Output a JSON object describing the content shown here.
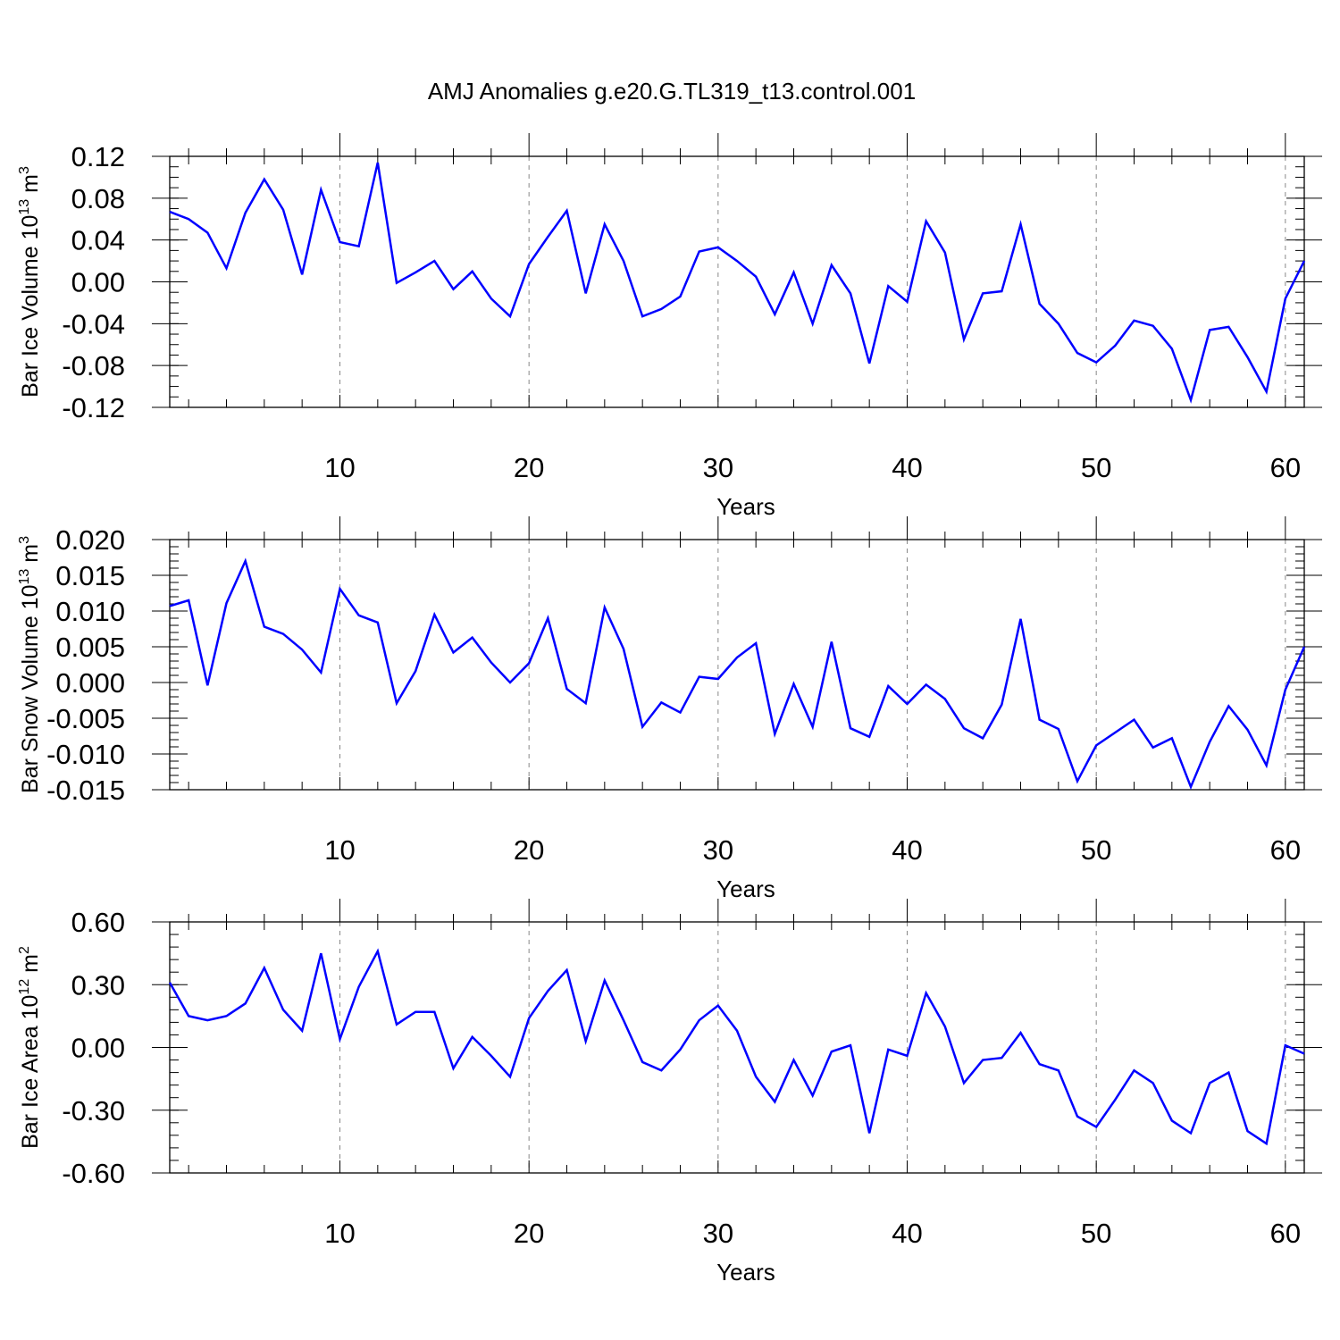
{
  "title": "AMJ Anomalies g.e20.G.TL319_t13.control.001",
  "chart_data": [
    {
      "type": "line",
      "ylabel": "Bar Ice Volume 10",
      "ylabel_unit_exp": "13",
      "ylabel_unit": "m",
      "ylabel_unit_pow": "3",
      "xlabel": "Years",
      "xlim": [
        1,
        61
      ],
      "ylim": [
        -0.12,
        0.12
      ],
      "x_ticks": [
        10,
        20,
        30,
        40,
        50,
        60
      ],
      "x_tick_labels": [
        "10",
        "20",
        "30",
        "40",
        "50",
        "60"
      ],
      "y_ticks": [
        -0.12,
        -0.08,
        -0.04,
        0.0,
        0.04,
        0.08,
        0.12
      ],
      "y_tick_labels": [
        "-0.12",
        "-0.08",
        "-0.04",
        "0.00",
        "0.04",
        "0.08",
        "0.12"
      ],
      "y_minor_step": 0.01,
      "series": [
        {
          "name": "Bar Ice Volume",
          "color": "#0000ff",
          "values": [
            0.067,
            0.06,
            0.047,
            0.013,
            0.066,
            0.098,
            0.069,
            0.007,
            0.088,
            0.038,
            0.034,
            0.114,
            -0.001,
            0.009,
            0.02,
            -0.007,
            0.01,
            -0.016,
            -0.033,
            0.017,
            0.043,
            0.068,
            -0.011,
            0.055,
            0.02,
            -0.033,
            -0.026,
            -0.014,
            0.029,
            0.033,
            0.02,
            0.005,
            -0.031,
            0.009,
            -0.04,
            0.016,
            -0.011,
            -0.078,
            -0.004,
            -0.019,
            0.058,
            0.028,
            -0.055,
            -0.011,
            -0.009,
            0.055,
            -0.021,
            -0.04,
            -0.068,
            -0.077,
            -0.061,
            -0.037,
            -0.042,
            -0.064,
            -0.113,
            -0.046,
            -0.043,
            -0.072,
            -0.105,
            -0.016,
            0.02
          ]
        }
      ]
    },
    {
      "type": "line",
      "ylabel": "Bar Snow Volume 10",
      "ylabel_unit_exp": "13",
      "ylabel_unit": "m",
      "ylabel_unit_pow": "3",
      "xlabel": "Years",
      "xlim": [
        1,
        61
      ],
      "ylim": [
        -0.015,
        0.02
      ],
      "x_ticks": [
        10,
        20,
        30,
        40,
        50,
        60
      ],
      "x_tick_labels": [
        "10",
        "20",
        "30",
        "40",
        "50",
        "60"
      ],
      "y_ticks": [
        -0.015,
        -0.01,
        -0.005,
        0.0,
        0.005,
        0.01,
        0.015,
        0.02
      ],
      "y_tick_labels": [
        "-0.015",
        "-0.010",
        "-0.005",
        "0.000",
        "0.005",
        "0.010",
        "0.015",
        "0.020"
      ],
      "y_minor_step": 0.001,
      "series": [
        {
          "name": "Bar Snow Volume",
          "color": "#0000ff",
          "values": [
            0.0107,
            0.0115,
            -0.0004,
            0.0111,
            0.017,
            0.0078,
            0.0068,
            0.0046,
            0.0014,
            0.0131,
            0.0094,
            0.0084,
            -0.0029,
            0.0016,
            0.0095,
            0.0042,
            0.0063,
            0.0028,
            0.0,
            0.0027,
            0.009,
            -0.0009,
            -0.0029,
            0.0105,
            0.0047,
            -0.0062,
            -0.0028,
            -0.0042,
            0.0008,
            0.0005,
            0.0035,
            0.0055,
            -0.0072,
            -0.0002,
            -0.0062,
            0.0057,
            -0.0064,
            -0.0076,
            -0.0005,
            -0.003,
            -0.0003,
            -0.0023,
            -0.0064,
            -0.0078,
            -0.0031,
            0.0089,
            -0.0052,
            -0.0065,
            -0.0138,
            -0.0088,
            -0.007,
            -0.0052,
            -0.0091,
            -0.0078,
            -0.0146,
            -0.0083,
            -0.0033,
            -0.0066,
            -0.0116,
            -0.001,
            0.005
          ]
        }
      ]
    },
    {
      "type": "line",
      "ylabel": "Bar Ice Area 10",
      "ylabel_unit_exp": "12",
      "ylabel_unit": "m",
      "ylabel_unit_pow": "2",
      "xlabel": "Years",
      "xlim": [
        1,
        61
      ],
      "ylim": [
        -0.6,
        0.6
      ],
      "x_ticks": [
        10,
        20,
        30,
        40,
        50,
        60
      ],
      "x_tick_labels": [
        "10",
        "20",
        "30",
        "40",
        "50",
        "60"
      ],
      "y_ticks": [
        -0.6,
        -0.3,
        0.0,
        0.3,
        0.6
      ],
      "y_tick_labels": [
        "-0.60",
        "-0.30",
        "0.00",
        "0.30",
        "0.60"
      ],
      "y_minor_step": 0.06,
      "series": [
        {
          "name": "Bar Ice Area",
          "color": "#0000ff",
          "values": [
            0.31,
            0.15,
            0.13,
            0.15,
            0.21,
            0.38,
            0.18,
            0.08,
            0.45,
            0.04,
            0.29,
            0.46,
            0.11,
            0.17,
            0.17,
            -0.1,
            0.05,
            -0.04,
            -0.14,
            0.14,
            0.27,
            0.37,
            0.03,
            0.32,
            0.13,
            -0.07,
            -0.11,
            -0.01,
            0.13,
            0.2,
            0.08,
            -0.14,
            -0.26,
            -0.06,
            -0.23,
            -0.02,
            0.01,
            -0.41,
            -0.01,
            -0.04,
            0.26,
            0.1,
            -0.17,
            -0.06,
            -0.05,
            0.07,
            -0.08,
            -0.11,
            -0.33,
            -0.38,
            -0.25,
            -0.11,
            -0.17,
            -0.35,
            -0.41,
            -0.17,
            -0.12,
            -0.4,
            -0.46,
            0.01,
            -0.03
          ]
        }
      ]
    }
  ]
}
